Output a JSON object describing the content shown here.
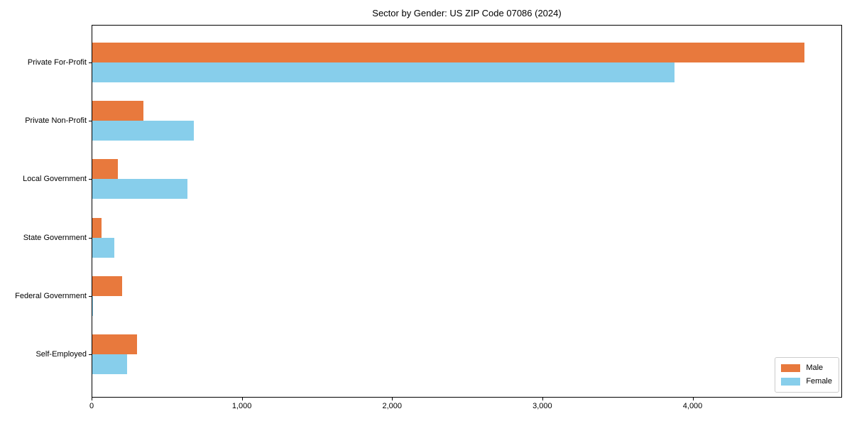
{
  "chart_data": {
    "type": "bar",
    "orientation": "horizontal",
    "title": "Sector by Gender: US ZIP Code 07086 (2024)",
    "categories": [
      "Private For-Profit",
      "Private Non-Profit",
      "Local Government",
      "State Government",
      "Federal Government",
      "Self-Employed"
    ],
    "series": [
      {
        "name": "Male",
        "color": "#e8793d",
        "values": [
          4740,
          340,
          170,
          60,
          200,
          300
        ]
      },
      {
        "name": "Female",
        "color": "#87ceeb",
        "values": [
          3875,
          675,
          635,
          145,
          5,
          230
        ]
      }
    ],
    "xlabel": "",
    "ylabel": "",
    "xlim": [
      0,
      4985
    ],
    "x_ticks": [
      0,
      1000,
      2000,
      3000,
      4000
    ],
    "x_tick_labels": [
      "0",
      "1,000",
      "2,000",
      "3,000",
      "4,000"
    ],
    "grid": false,
    "legend_position": "lower right",
    "background_color": "#ffffff",
    "spine_color": "#000000"
  }
}
